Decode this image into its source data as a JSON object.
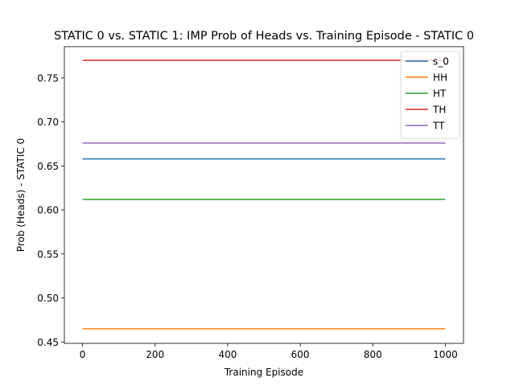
{
  "chart_data": {
    "type": "line",
    "title": "STATIC 0 vs. STATIC 1: IMP Prob of Heads vs. Training Episode - STATIC 0",
    "xlabel": "Training Episode",
    "ylabel": "Prob (Heads) - STATIC 0",
    "xlim": [
      -50,
      1050
    ],
    "ylim": [
      0.4485,
      0.7855
    ],
    "x_ticks": [
      0,
      200,
      400,
      600,
      800,
      1000
    ],
    "y_ticks": [
      0.45,
      0.5,
      0.55,
      0.6,
      0.65,
      0.7,
      0.75
    ],
    "y_tick_labels": [
      "0.45",
      "0.50",
      "0.55",
      "0.60",
      "0.65",
      "0.70",
      "0.75"
    ],
    "x_tick_labels": [
      "0",
      "200",
      "400",
      "600",
      "800",
      "1000"
    ],
    "grid": false,
    "legend_position": "top-right",
    "series": [
      {
        "name": "s_0",
        "color": "#1f77b4",
        "x": [
          0,
          1000
        ],
        "y": [
          0.658,
          0.658
        ]
      },
      {
        "name": "HH",
        "color": "#ff7f0e",
        "x": [
          0,
          1000
        ],
        "y": [
          0.465,
          0.465
        ]
      },
      {
        "name": "HT",
        "color": "#2ca02c",
        "x": [
          0,
          1000
        ],
        "y": [
          0.612,
          0.612
        ]
      },
      {
        "name": "TH",
        "color": "#d62728",
        "x": [
          0,
          1000
        ],
        "y": [
          0.77,
          0.77
        ]
      },
      {
        "name": "TT",
        "color": "#9467bd",
        "x": [
          0,
          1000
        ],
        "y": [
          0.676,
          0.676
        ]
      }
    ]
  }
}
